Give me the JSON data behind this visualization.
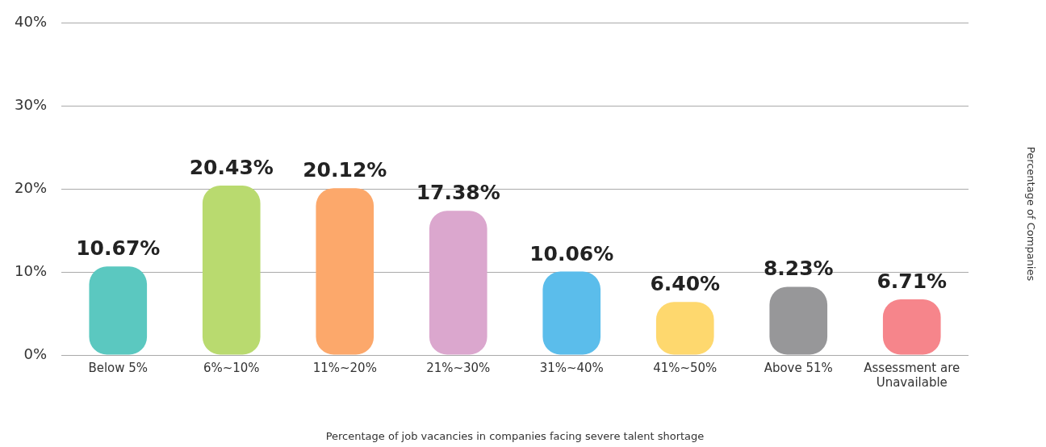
{
  "chart_data": {
    "type": "bar",
    "xlabel": "Percentage of job vacancies in companies facing severe talent shortage",
    "annotations": [
      "Percentage of Companies"
    ],
    "categories": [
      "Below 5%",
      "6%~10%",
      "11%~20%",
      "21%~30%",
      "31%~40%",
      "41%~50%",
      "Above 51%",
      "Assessment are Unavailable"
    ],
    "values": [
      10.67,
      20.43,
      20.12,
      17.38,
      10.06,
      6.4,
      8.23,
      6.71
    ],
    "colors": [
      "#5bc8c0",
      "#b9da6f",
      "#fca86b",
      "#dba7ce",
      "#5bbdeb",
      "#fed86e",
      "#979799",
      "#f6858b"
    ],
    "value_labels": [
      "10.67%",
      "20.43%",
      "20.12%",
      "17.38%",
      "10.06%",
      "6.40%",
      "8.23%",
      "6.71%"
    ],
    "ylim": [
      0,
      40
    ],
    "yticks": [
      {
        "value": 0,
        "label": "0%"
      },
      {
        "value": 10,
        "label": "10%"
      },
      {
        "value": 20,
        "label": "20%"
      },
      {
        "value": 30,
        "label": "30%"
      },
      {
        "value": 40,
        "label": "40%"
      }
    ],
    "grid": "y",
    "legend": false
  }
}
